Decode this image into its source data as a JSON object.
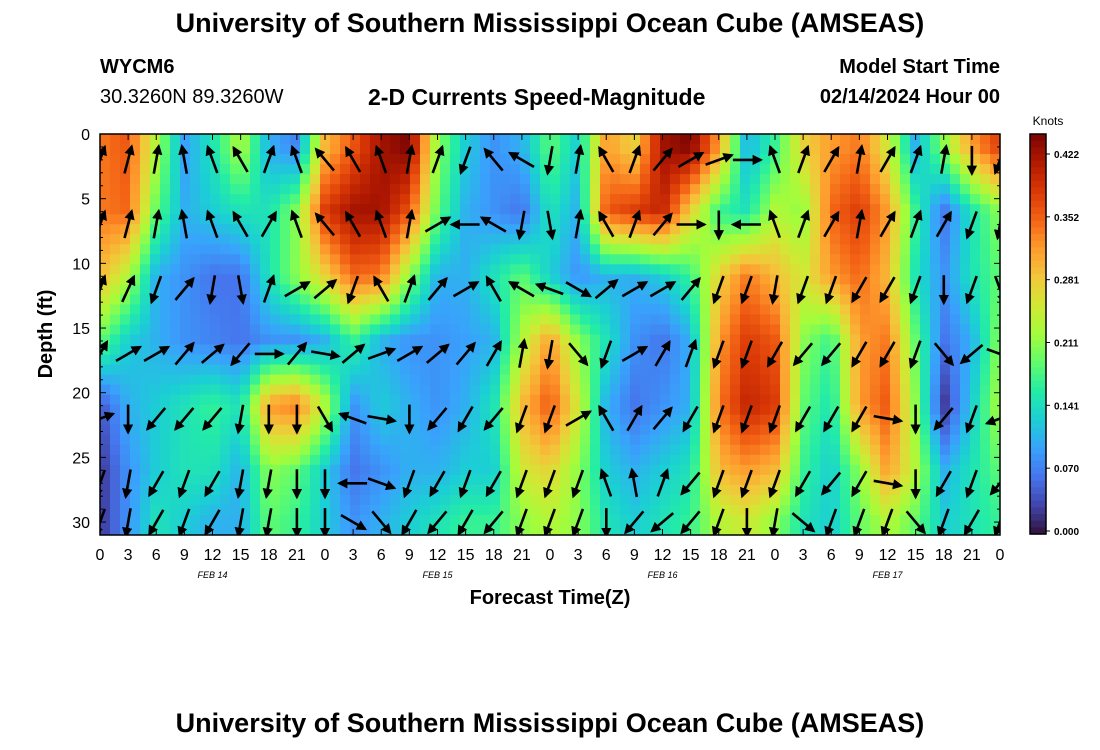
{
  "header": {
    "title": "University of Southern Mississippi Ocean Cube (AMSEAS)",
    "station_id": "WYCM6",
    "station_coords": "30.3260N  89.3260W",
    "chart_title": "2-D Currents Speed-Magnitude",
    "model_start_label": "Model Start Time",
    "model_start_value": "02/14/2024 Hour 00"
  },
  "footer": {
    "title": "University of Southern Mississippi Ocean Cube (AMSEAS)"
  },
  "chart_data": {
    "type": "heatmap",
    "title": "2-D Currents Speed-Magnitude",
    "xlabel": "Forecast Time(Z)",
    "ylabel": "Depth (ft)",
    "x_tick_labels": [
      "0",
      "3",
      "6",
      "9",
      "12",
      "15",
      "18",
      "21",
      "0",
      "3",
      "6",
      "9",
      "12",
      "15",
      "18",
      "21",
      "0",
      "3",
      "6",
      "9",
      "12",
      "15",
      "18",
      "21",
      "0",
      "3",
      "6",
      "9",
      "12",
      "15",
      "18",
      "21",
      "0"
    ],
    "x_hours": [
      0,
      96
    ],
    "date_labels": [
      {
        "label": "FEB 14",
        "hour": 12
      },
      {
        "label": "FEB 15",
        "hour": 36
      },
      {
        "label": "FEB 16",
        "hour": 60
      },
      {
        "label": "FEB 17",
        "hour": 84
      }
    ],
    "ylim": [
      0,
      31
    ],
    "y_ticks": [
      0,
      5,
      10,
      15,
      20,
      25,
      30
    ],
    "y_inverted": true,
    "colorbar": {
      "unit": "Knots",
      "ticks": [
        "0.422",
        "0.352",
        "0.281",
        "0.211",
        "0.141",
        "0.070",
        "0.000"
      ],
      "range": [
        0,
        0.422
      ],
      "colormap": [
        "#30123b",
        "#4145ab",
        "#4675ed",
        "#39a2fc",
        "#1bcfd4",
        "#24eca6",
        "#61fc6c",
        "#a4fc3b",
        "#d1e834",
        "#f3c63a",
        "#fe9b2d",
        "#f36315",
        "#d93806",
        "#b11901",
        "#7a0402"
      ]
    },
    "speed_grid": {
      "hours": [
        0,
        3,
        6,
        9,
        12,
        15,
        18,
        21,
        24,
        27,
        30,
        33,
        36,
        39,
        42,
        45,
        48,
        51,
        54,
        57,
        60,
        63,
        66,
        69,
        72,
        75,
        78,
        81,
        84,
        87,
        90,
        93,
        96
      ],
      "depths_ft": [
        1,
        6,
        11,
        16,
        21,
        26,
        30
      ],
      "values_knots": [
        [
          0.32,
          0.34,
          0.22,
          0.09,
          0.14,
          0.22,
          0.1,
          0.07,
          0.28,
          0.34,
          0.4,
          0.42,
          0.2,
          0.12,
          0.08,
          0.1,
          0.18,
          0.12,
          0.3,
          0.26,
          0.4,
          0.42,
          0.3,
          0.1,
          0.16,
          0.26,
          0.3,
          0.32,
          0.24,
          0.1,
          0.2,
          0.3,
          0.36
        ],
        [
          0.32,
          0.33,
          0.18,
          0.1,
          0.12,
          0.14,
          0.14,
          0.2,
          0.36,
          0.4,
          0.4,
          0.34,
          0.18,
          0.1,
          0.08,
          0.06,
          0.14,
          0.1,
          0.34,
          0.36,
          0.38,
          0.26,
          0.16,
          0.14,
          0.22,
          0.2,
          0.33,
          0.36,
          0.3,
          0.16,
          0.06,
          0.14,
          0.2
        ],
        [
          0.28,
          0.22,
          0.1,
          0.08,
          0.06,
          0.06,
          0.14,
          0.2,
          0.26,
          0.33,
          0.32,
          0.2,
          0.1,
          0.1,
          0.14,
          0.18,
          0.12,
          0.08,
          0.1,
          0.1,
          0.12,
          0.16,
          0.26,
          0.32,
          0.28,
          0.24,
          0.3,
          0.33,
          0.28,
          0.14,
          0.08,
          0.14,
          0.18
        ],
        [
          0.18,
          0.12,
          0.1,
          0.08,
          0.07,
          0.06,
          0.08,
          0.08,
          0.1,
          0.16,
          0.1,
          0.08,
          0.08,
          0.09,
          0.1,
          0.22,
          0.3,
          0.2,
          0.14,
          0.08,
          0.06,
          0.1,
          0.3,
          0.36,
          0.34,
          0.2,
          0.16,
          0.3,
          0.32,
          0.18,
          0.06,
          0.1,
          0.2
        ],
        [
          0.04,
          0.1,
          0.12,
          0.14,
          0.16,
          0.14,
          0.3,
          0.32,
          0.22,
          0.08,
          0.12,
          0.1,
          0.08,
          0.1,
          0.14,
          0.28,
          0.34,
          0.24,
          0.1,
          0.06,
          0.08,
          0.1,
          0.32,
          0.38,
          0.36,
          0.18,
          0.14,
          0.3,
          0.34,
          0.2,
          0.02,
          0.12,
          0.22
        ],
        [
          0.02,
          0.08,
          0.12,
          0.14,
          0.14,
          0.1,
          0.2,
          0.18,
          0.12,
          0.06,
          0.08,
          0.1,
          0.1,
          0.12,
          0.12,
          0.24,
          0.26,
          0.2,
          0.12,
          0.1,
          0.12,
          0.14,
          0.28,
          0.3,
          0.28,
          0.16,
          0.12,
          0.2,
          0.3,
          0.22,
          0.1,
          0.14,
          0.18
        ],
        [
          0.02,
          0.08,
          0.14,
          0.12,
          0.1,
          0.1,
          0.18,
          0.16,
          0.12,
          0.08,
          0.1,
          0.12,
          0.14,
          0.16,
          0.16,
          0.2,
          0.22,
          0.2,
          0.14,
          0.12,
          0.14,
          0.16,
          0.22,
          0.24,
          0.2,
          0.14,
          0.12,
          0.18,
          0.22,
          0.18,
          0.12,
          0.14,
          0.16
        ]
      ]
    },
    "vectors": {
      "hours": [
        0,
        3,
        6,
        9,
        12,
        15,
        18,
        21,
        24,
        27,
        30,
        33,
        36,
        39,
        42,
        45,
        48,
        51,
        54,
        57,
        60,
        63,
        66,
        69,
        72,
        75,
        78,
        81,
        84,
        87,
        90,
        93,
        96
      ],
      "depths_ft": [
        2,
        7,
        12,
        17,
        22,
        27,
        30
      ],
      "direction_deg": [
        [
          20,
          15,
          10,
          350,
          340,
          330,
          20,
          340,
          320,
          330,
          340,
          10,
          20,
          200,
          320,
          300,
          190,
          10,
          330,
          20,
          40,
          60,
          70,
          90,
          340,
          20,
          30,
          10,
          30,
          20,
          10,
          180,
          200
        ],
        [
          20,
          15,
          10,
          350,
          340,
          330,
          30,
          340,
          320,
          330,
          340,
          10,
          60,
          270,
          300,
          190,
          170,
          10,
          330,
          20,
          40,
          90,
          180,
          270,
          340,
          20,
          30,
          10,
          30,
          20,
          30,
          200,
          190
        ],
        [
          20,
          25,
          200,
          40,
          190,
          170,
          20,
          60,
          50,
          200,
          330,
          20,
          40,
          60,
          330,
          300,
          290,
          120,
          50,
          60,
          60,
          40,
          200,
          200,
          190,
          200,
          200,
          210,
          210,
          200,
          180,
          200,
          160
        ],
        [
          30,
          60,
          60,
          40,
          50,
          220,
          90,
          40,
          100,
          50,
          70,
          60,
          50,
          40,
          30,
          10,
          190,
          140,
          200,
          60,
          30,
          20,
          200,
          200,
          210,
          220,
          220,
          210,
          210,
          200,
          140,
          230,
          110
        ],
        [
          70,
          180,
          220,
          220,
          220,
          190,
          180,
          180,
          150,
          290,
          100,
          180,
          220,
          210,
          220,
          200,
          200,
          60,
          330,
          30,
          40,
          210,
          200,
          200,
          200,
          210,
          210,
          210,
          100,
          180,
          220,
          200,
          250
        ],
        [
          200,
          190,
          210,
          200,
          210,
          190,
          190,
          180,
          180,
          270,
          110,
          200,
          210,
          200,
          210,
          200,
          200,
          200,
          340,
          350,
          20,
          220,
          200,
          200,
          200,
          210,
          220,
          210,
          100,
          180,
          210,
          200,
          220
        ],
        [
          200,
          190,
          210,
          200,
          210,
          190,
          190,
          180,
          180,
          120,
          140,
          210,
          220,
          210,
          220,
          200,
          200,
          200,
          180,
          220,
          230,
          220,
          200,
          180,
          190,
          130,
          200,
          200,
          200,
          140,
          200,
          210,
          200
        ]
      ]
    }
  }
}
